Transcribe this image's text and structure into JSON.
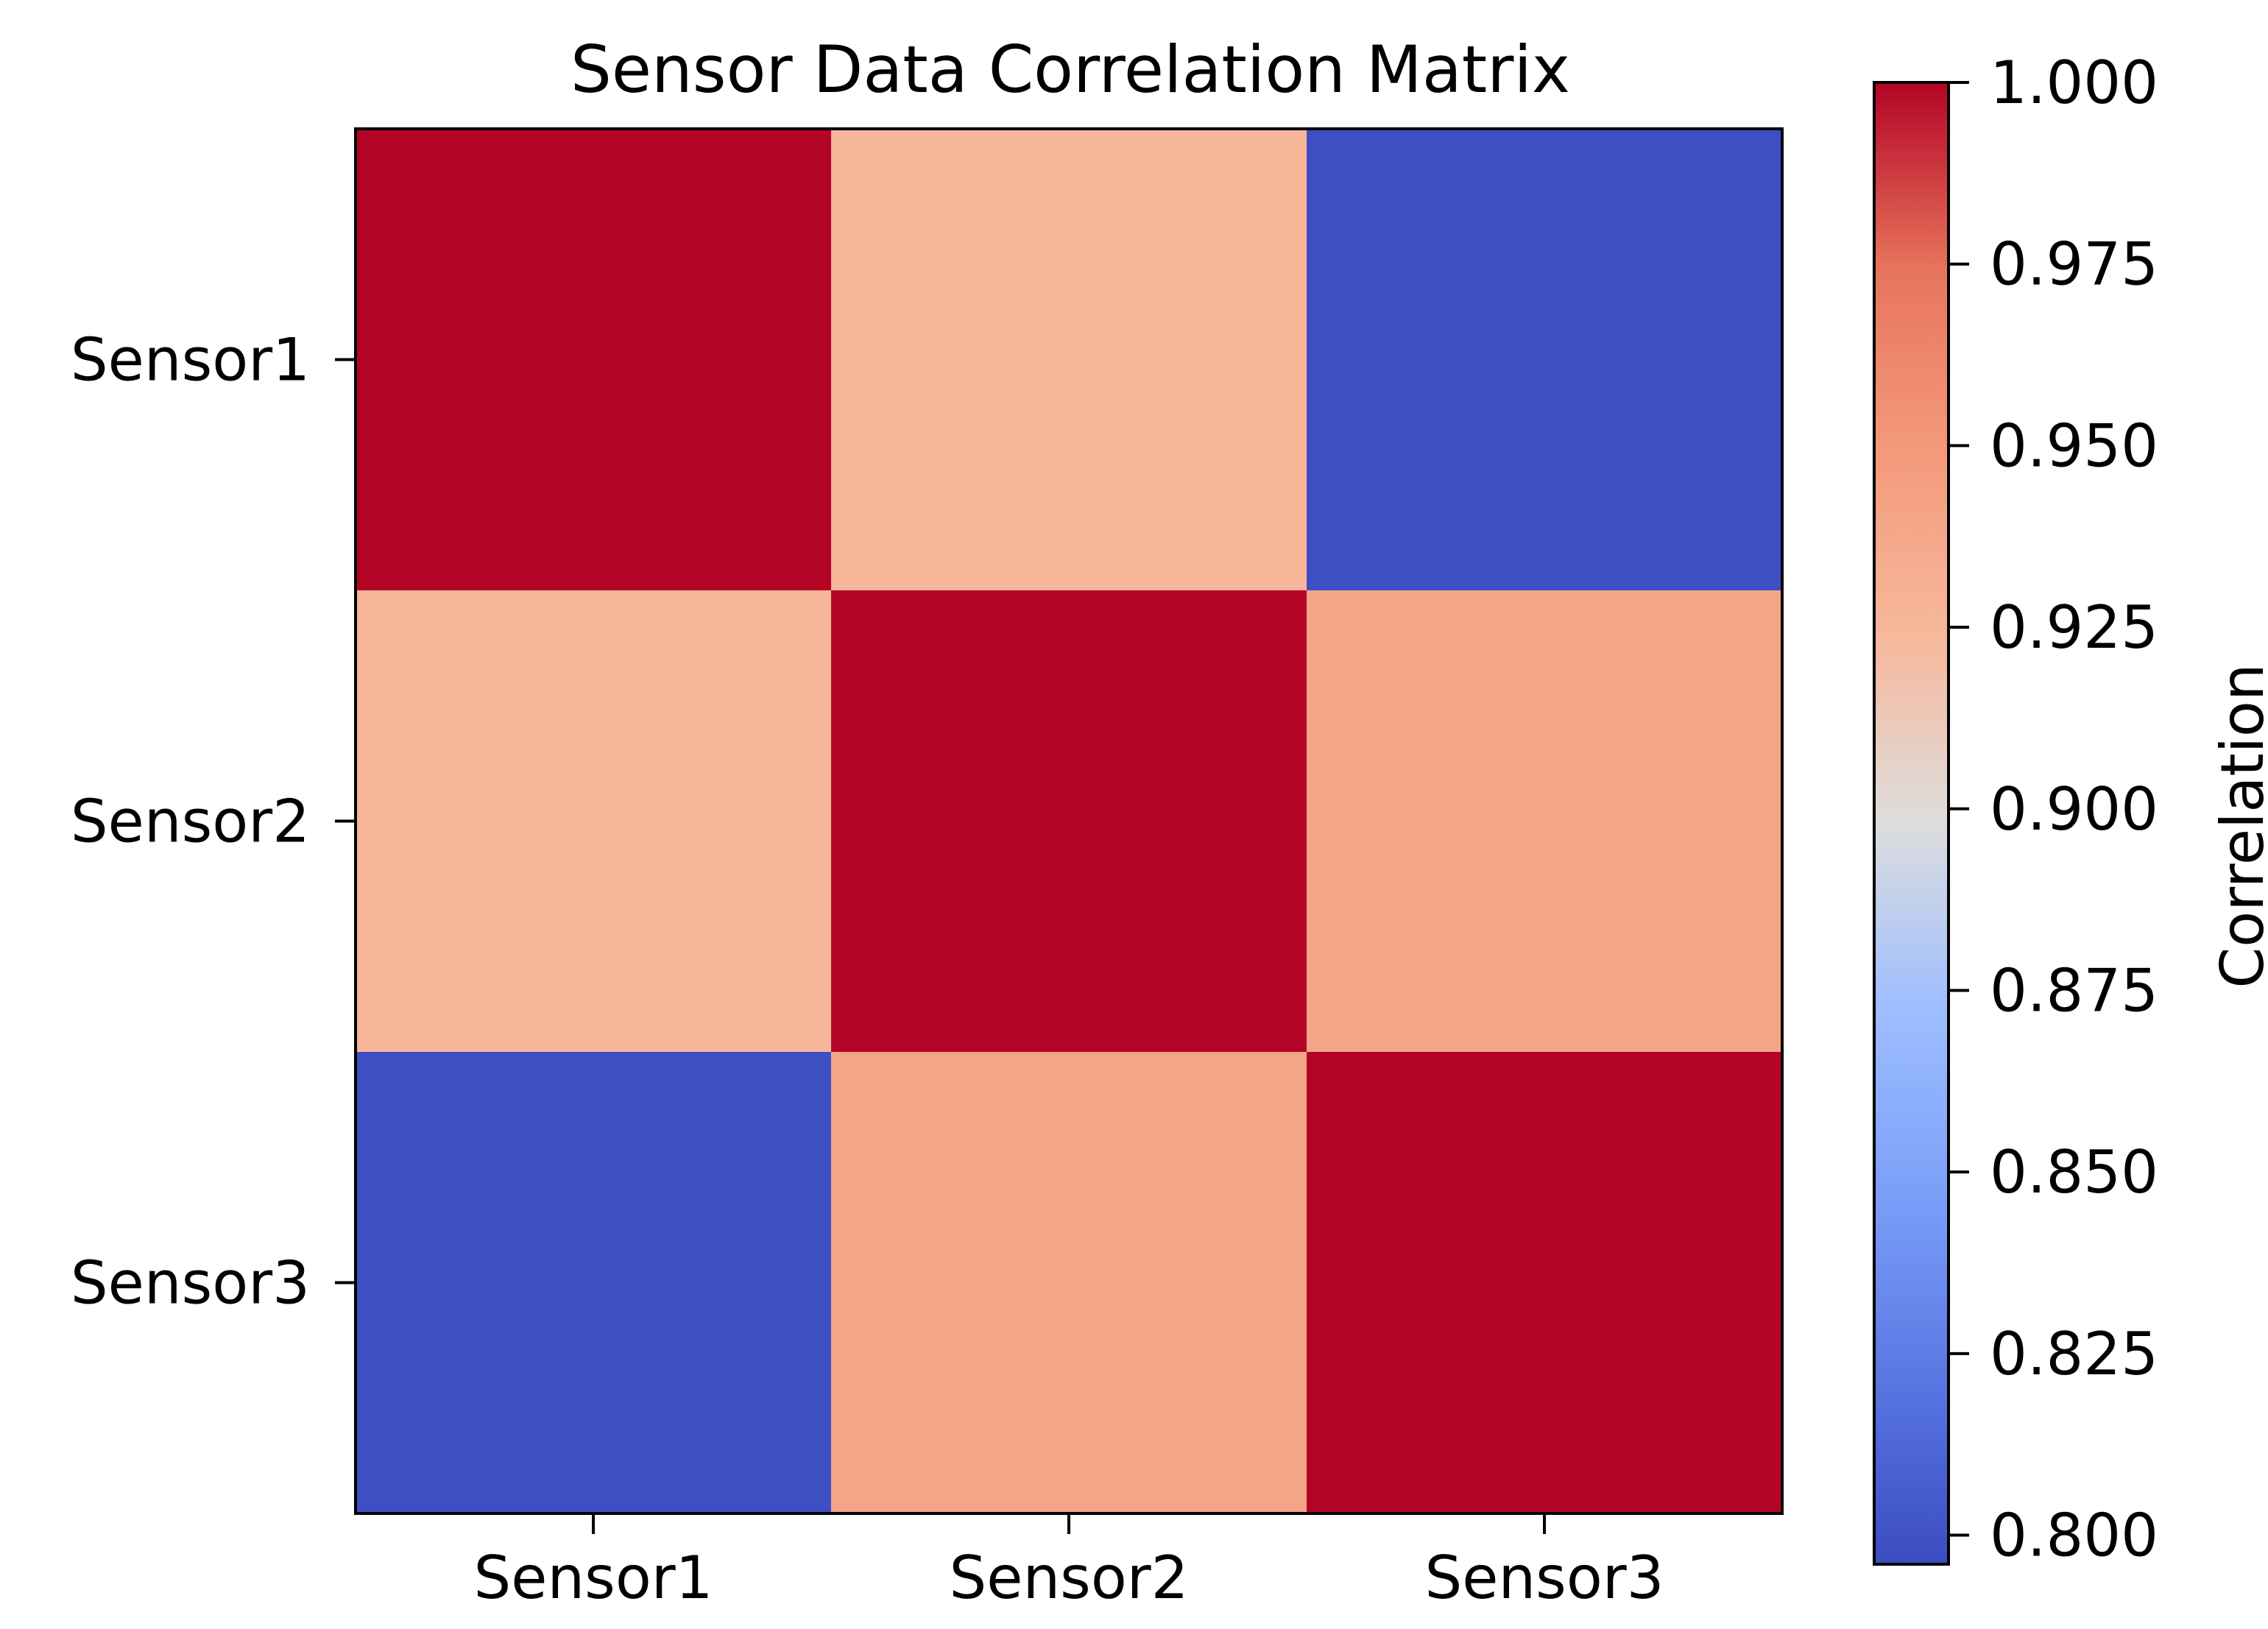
{
  "chart_data": {
    "type": "heatmap",
    "title": "Sensor Data Correlation Matrix",
    "x_categories": [
      "Sensor1",
      "Sensor2",
      "Sensor3"
    ],
    "y_categories": [
      "Sensor1",
      "Sensor2",
      "Sensor3"
    ],
    "matrix": [
      [
        1.0,
        0.925,
        0.798
      ],
      [
        0.925,
        1.0,
        0.94
      ],
      [
        0.798,
        0.94,
        1.0
      ]
    ],
    "colormap": "coolwarm",
    "colorbar": {
      "label": "Correlation",
      "vmin": 0.796,
      "vmax": 1.0,
      "ticks": [
        1.0,
        0.975,
        0.95,
        0.925,
        0.9,
        0.875,
        0.85,
        0.825,
        0.8
      ],
      "tick_labels": [
        "1.000",
        "0.975",
        "0.950",
        "0.925",
        "0.900",
        "0.875",
        "0.850",
        "0.825",
        "0.800"
      ]
    }
  }
}
